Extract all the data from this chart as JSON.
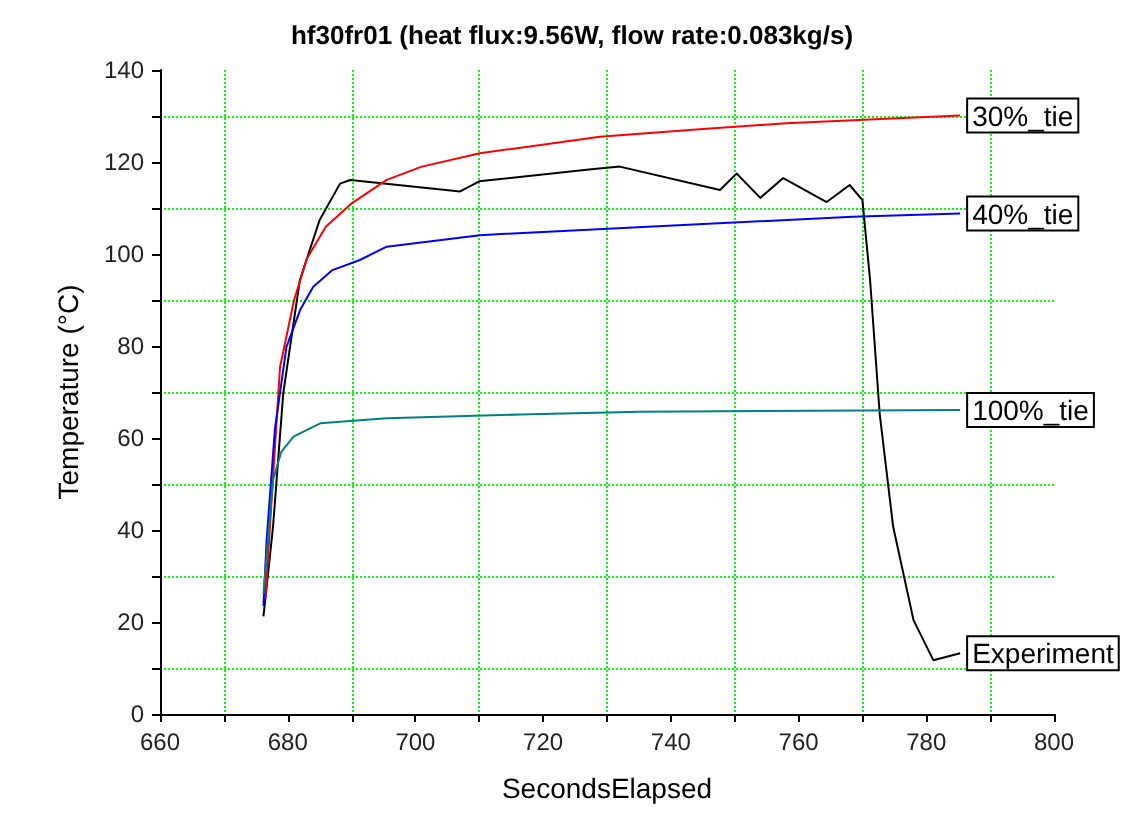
{
  "chart_data": {
    "type": "line",
    "title": "hf30fr01 (heat flux:9.56W, flow rate:0.083kg/s)",
    "xlabel": "SecondsElapsed",
    "ylabel": "Temperature (°C)",
    "xlim": [
      660,
      800
    ],
    "ylim": [
      0,
      140
    ],
    "xticks": [
      660,
      {
        "value": 670,
        "label": null
      },
      680,
      {
        "value": 690,
        "label": null
      },
      700,
      {
        "value": 710,
        "label": null
      },
      720,
      {
        "value": 730,
        "label": null
      },
      740,
      {
        "value": 750,
        "label": null
      },
      760,
      {
        "value": 770,
        "label": null
      },
      780,
      {
        "value": 790,
        "label": null
      },
      800
    ],
    "yticks": [
      0,
      {
        "value": 10,
        "label": null
      },
      20,
      {
        "value": 30,
        "label": null
      },
      40,
      {
        "value": 50,
        "label": null
      },
      60,
      {
        "value": 70,
        "label": null
      },
      80,
      {
        "value": 90,
        "label": null
      },
      100,
      {
        "value": 110,
        "label": null
      },
      120,
      {
        "value": 130,
        "label": null
      },
      140
    ],
    "grid": true,
    "legend": false,
    "marker": "none",
    "line_style": "solid",
    "series": [
      {
        "name": "Experiment",
        "color": "#000000",
        "x": [
          676.2,
          677.7,
          679.3,
          681.9,
          685,
          688.2,
          689.8,
          707,
          710,
          726.8,
          732,
          747.7,
          750.3,
          754,
          757.6,
          764.4,
          768,
          770,
          771.2,
          772.7,
          774.8,
          778,
          781.1,
          785.3
        ],
        "values": [
          21.2,
          40.7,
          69.7,
          94.3,
          107.4,
          115.3,
          116.1,
          113.6,
          115.8,
          118.3,
          119,
          113.9,
          117.5,
          112.2,
          116.5,
          111.3,
          115,
          111.7,
          94.3,
          65.3,
          40.8,
          20.4,
          11.7,
          13.2
        ]
      },
      {
        "name": "30%_tie",
        "color": "#ff0000",
        "x": [
          676.5,
          678.8,
          681,
          683,
          686,
          690,
          695.5,
          701,
          710.1,
          728.9,
          745,
          758.1,
          772,
          785.3
        ],
        "values": [
          25,
          75.5,
          90,
          99,
          106,
          111,
          116.1,
          119,
          121.9,
          125.5,
          127.2,
          128.4,
          129.3,
          130.1
        ]
      },
      {
        "name": "40%_tie",
        "color": "#0000ff",
        "x": [
          676.2,
          676.7,
          678,
          679.8,
          682,
          684,
          687,
          691.3,
          695.5,
          710.1,
          737.2,
          768.5,
          785.3
        ],
        "values": [
          23.5,
          37.8,
          62,
          79.8,
          88,
          92.9,
          96.5,
          98.7,
          101.6,
          104.1,
          106,
          108.1,
          108.8
        ]
      },
      {
        "name": "100%_tie",
        "color": "#008080",
        "x": [
          676.2,
          677.7,
          679,
          680.9,
          685.1,
          695.5,
          716.4,
          735.2,
          785.3
        ],
        "values": [
          26.2,
          50.9,
          57,
          60.3,
          63.2,
          64.3,
          65.1,
          65.7,
          66.1
        ]
      }
    ]
  }
}
